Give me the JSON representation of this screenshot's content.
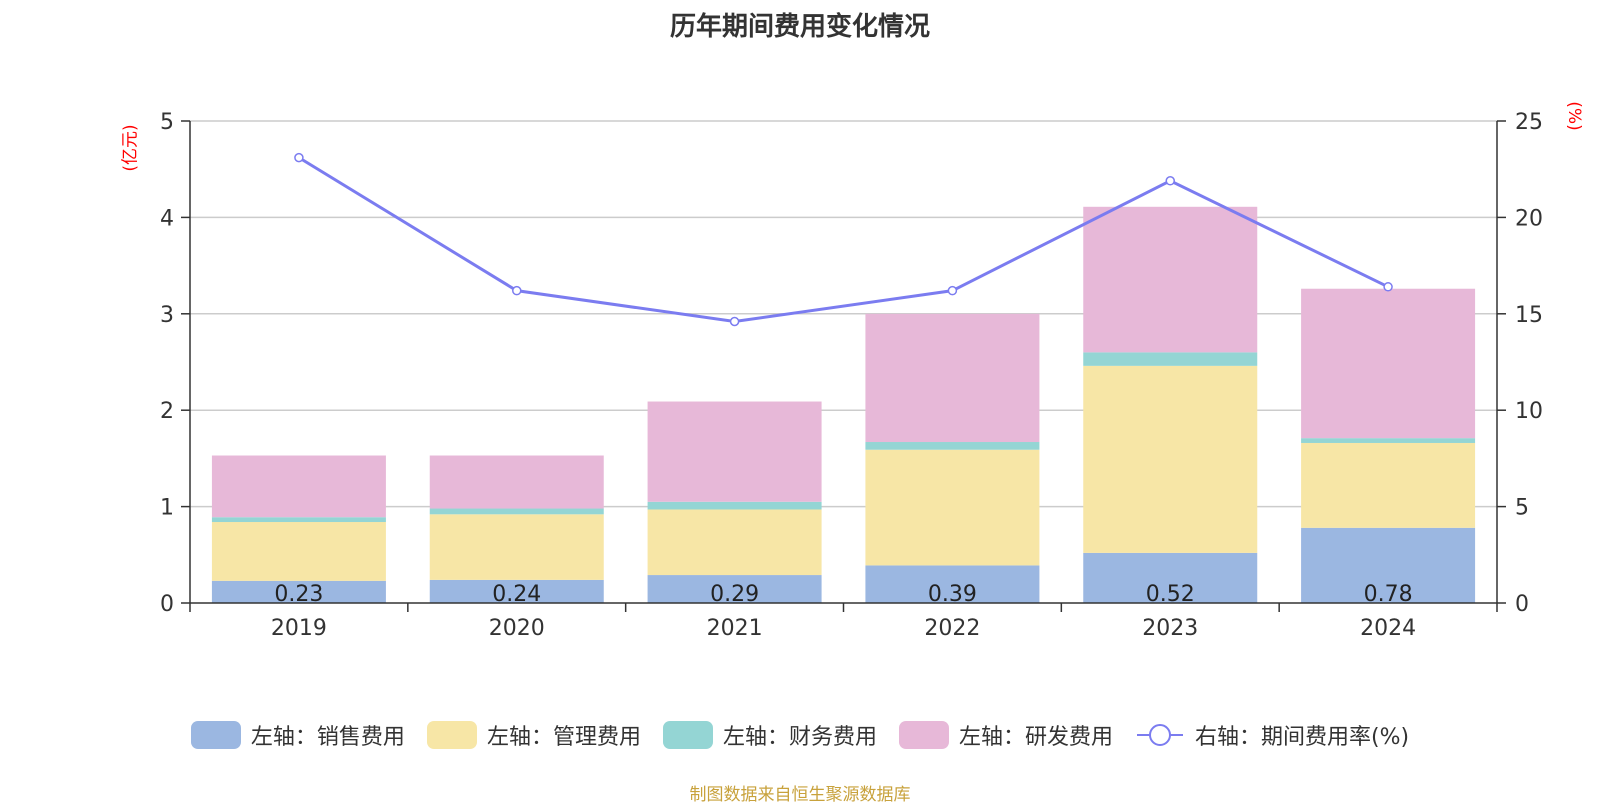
{
  "title": "历年期间费用变化情况",
  "left_unit": "(亿元)",
  "right_unit": "(%)",
  "source": "制图数据来自恒生聚源数据库",
  "source_color": "#c8a23c",
  "legend": [
    {
      "label": "左轴：销售费用",
      "color": "#9bb7e1"
    },
    {
      "label": "左轴：管理费用",
      "color": "#f7e6a6"
    },
    {
      "label": "左轴：财务费用",
      "color": "#94d5d4"
    },
    {
      "label": "左轴：研发费用",
      "color": "#e7b8d8"
    },
    {
      "label": "右轴：期间费用率(%)",
      "color": "#7b7cf0"
    }
  ],
  "chart_data": {
    "type": "bar",
    "stacked": true,
    "categories": [
      "2019",
      "2020",
      "2021",
      "2022",
      "2023",
      "2024"
    ],
    "series": [
      {
        "name": "左轴：销售费用",
        "axis": "left",
        "color": "#9bb7e1",
        "values": [
          0.23,
          0.24,
          0.29,
          0.39,
          0.52,
          0.78
        ],
        "show_labels": true
      },
      {
        "name": "左轴：管理费用",
        "axis": "left",
        "color": "#f7e6a6",
        "values": [
          0.61,
          0.68,
          0.68,
          1.2,
          1.94,
          0.88
        ]
      },
      {
        "name": "左轴：财务费用",
        "axis": "left",
        "color": "#94d5d4",
        "values": [
          0.05,
          0.06,
          0.08,
          0.08,
          0.14,
          0.05
        ]
      },
      {
        "name": "左轴：研发费用",
        "axis": "left",
        "color": "#e7b8d8",
        "values": [
          0.64,
          0.55,
          1.04,
          1.33,
          1.51,
          1.55
        ]
      },
      {
        "name": "右轴：期间费用率(%)",
        "axis": "right",
        "type": "line",
        "color": "#7b7cf0",
        "values": [
          23.1,
          16.2,
          14.6,
          16.2,
          21.9,
          16.4
        ]
      }
    ],
    "y_left": {
      "min": 0,
      "max": 5,
      "ticks": [
        "0",
        "1",
        "2",
        "3",
        "4",
        "5"
      ]
    },
    "y_right": {
      "min": 0,
      "max": 25,
      "ticks": [
        "0",
        "5",
        "10",
        "15",
        "20",
        "25"
      ]
    },
    "grid": true,
    "legend_position": "bottom"
  }
}
